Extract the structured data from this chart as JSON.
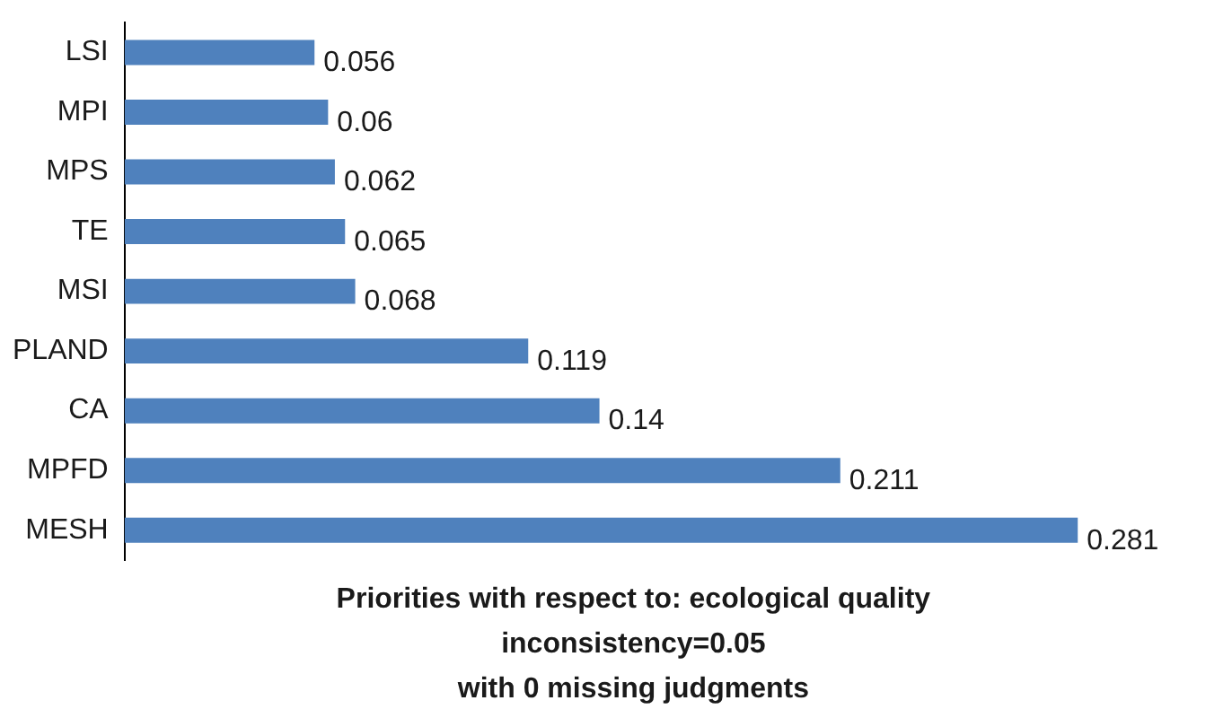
{
  "chart_data": {
    "type": "bar",
    "orientation": "horizontal",
    "categories": [
      "LSI",
      "MPI",
      "MPS",
      "TE",
      "MSI",
      "PLAND",
      "CA",
      "MPFD",
      "MESH"
    ],
    "values": [
      0.056,
      0.06,
      0.062,
      0.065,
      0.068,
      0.119,
      0.14,
      0.211,
      0.281
    ],
    "color": "#4f81bd",
    "data_labels": true,
    "tick_labels": "y",
    "legend": false,
    "annotations": [
      "Priorities with respect to: ecological quality",
      "inconsistency=0.05",
      "with 0 missing judgments"
    ]
  }
}
